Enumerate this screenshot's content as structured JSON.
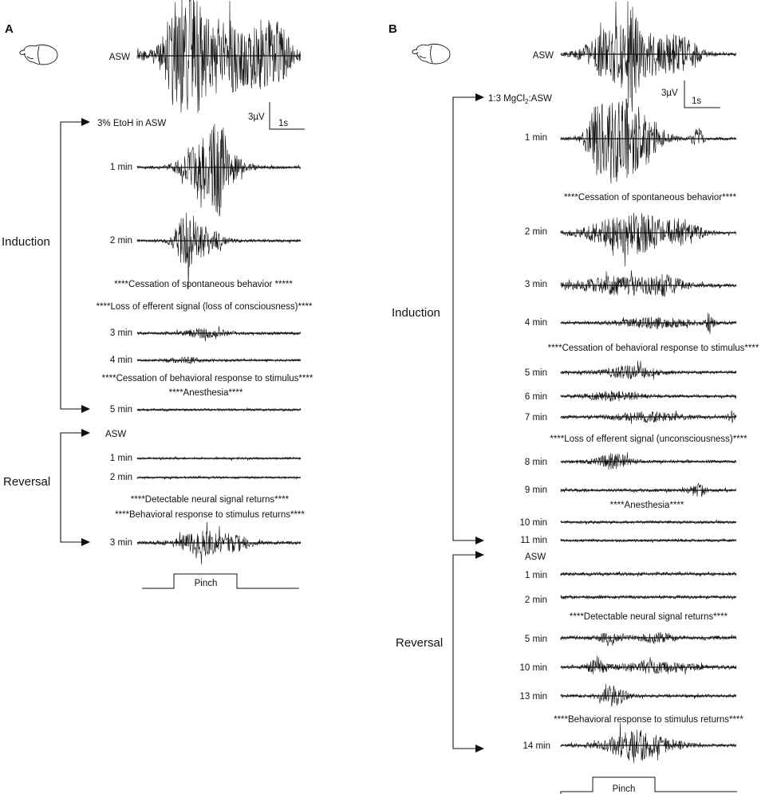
{
  "panel_a": {
    "letter": "A",
    "baseline_label": "ASW",
    "condition_label": "3% EtoH in ASW",
    "scale": {
      "amplitude": "3µV",
      "time": "1s"
    },
    "section_induction": "Induction",
    "section_reversal": "Reversal",
    "induction_traces": [
      "1 min",
      "2 min",
      "3 min",
      "4 min",
      "5 min"
    ],
    "reversal_baseline_label": "ASW",
    "reversal_traces": [
      "1 min",
      "2 min",
      "3 min"
    ],
    "annotations": {
      "cessation_spontaneous": "****Cessation of spontaneous behavior *****",
      "loss_efferent": "****Loss of efferent signal (loss of consciousness)****",
      "cessation_response": "****Cessation of behavioral response to stimulus****",
      "anesthesia": "****Anesthesia****",
      "neural_returns": "****Detectable neural signal returns****",
      "response_returns": "****Behavioral response to stimulus returns****"
    },
    "pinch_label": "Pinch"
  },
  "panel_b": {
    "letter": "B",
    "baseline_label": "ASW",
    "condition_label_main": "1:3 MgCl",
    "condition_label_sub": "2",
    "condition_label_tail": ":ASW",
    "scale": {
      "amplitude": "3µV",
      "time": "1s"
    },
    "section_induction": "Induction",
    "section_reversal": "Reversal",
    "induction_traces": [
      "1 min",
      "2 min",
      "3 min",
      "4 min",
      "5 min",
      "6 min",
      "7 min",
      "8 min",
      "9 min",
      "10 min",
      "11 min"
    ],
    "reversal_baseline_label": "ASW",
    "reversal_traces": [
      "1 min",
      "2 min",
      "5 min",
      "10 min",
      "13 min",
      "14 min"
    ],
    "annotations": {
      "cessation_spontaneous": "****Cessation of spontaneous behavior****",
      "cessation_response": "****Cessation of behavioral response to stimulus****",
      "loss_efferent": "****Loss of efferent signal (unconsciousness)****",
      "anesthesia": "****Anesthesia****",
      "neural_returns": "****Detectable neural signal returns****",
      "response_returns": "****Behavioral response to stimulus returns****"
    },
    "pinch_label": "Pinch"
  }
}
